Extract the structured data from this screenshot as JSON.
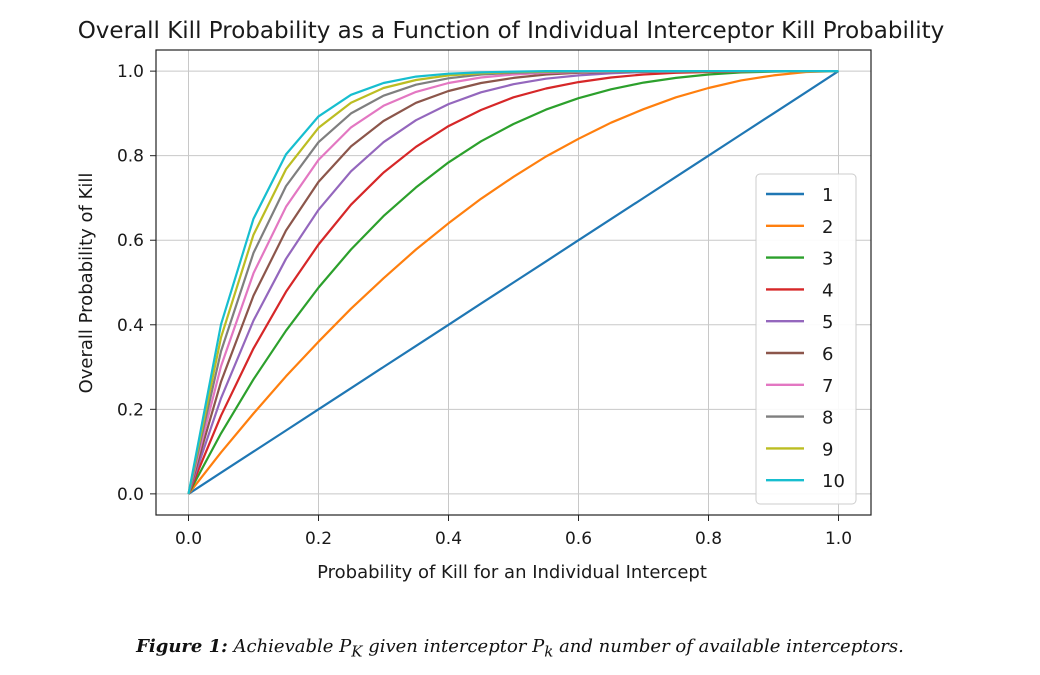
{
  "chart_data": {
    "type": "line",
    "title": "Overall Kill Probability as a Function of Individual Interceptor Kill Probability",
    "xlabel": "Probability of Kill for an Individual Intercept",
    "ylabel": "Overall Probability of Kill",
    "xlim": [
      -0.05,
      1.05
    ],
    "ylim": [
      -0.05,
      1.05
    ],
    "xticks": [
      "0.0",
      "0.2",
      "0.4",
      "0.6",
      "0.8",
      "1.0"
    ],
    "yticks": [
      "0.0",
      "0.2",
      "0.4",
      "0.6",
      "0.8",
      "1.0"
    ],
    "grid": true,
    "legend_position": "center-right",
    "x": [
      0.0,
      0.05,
      0.1,
      0.15,
      0.2,
      0.25,
      0.3,
      0.35,
      0.4,
      0.45,
      0.5,
      0.55,
      0.6,
      0.65,
      0.7,
      0.75,
      0.8,
      0.85,
      0.9,
      0.95,
      1.0
    ],
    "series": [
      {
        "name": "1",
        "color": "#1f77b4",
        "values": [
          0.0,
          0.05,
          0.1,
          0.15,
          0.2,
          0.25,
          0.3,
          0.35,
          0.4,
          0.45,
          0.5,
          0.55,
          0.6,
          0.65,
          0.7,
          0.75,
          0.8,
          0.85,
          0.9,
          0.95,
          1.0
        ]
      },
      {
        "name": "2",
        "color": "#ff7f0e",
        "values": [
          0.0,
          0.098,
          0.19,
          0.278,
          0.36,
          0.438,
          0.51,
          0.578,
          0.64,
          0.698,
          0.75,
          0.798,
          0.84,
          0.878,
          0.91,
          0.938,
          0.96,
          0.978,
          0.99,
          0.998,
          1.0
        ]
      },
      {
        "name": "3",
        "color": "#2ca02c",
        "values": [
          0.0,
          0.143,
          0.271,
          0.386,
          0.488,
          0.578,
          0.657,
          0.725,
          0.784,
          0.834,
          0.875,
          0.909,
          0.936,
          0.957,
          0.973,
          0.984,
          0.992,
          0.997,
          0.999,
          1.0,
          1.0
        ]
      },
      {
        "name": "4",
        "color": "#d62728",
        "values": [
          0.0,
          0.185,
          0.344,
          0.478,
          0.59,
          0.684,
          0.76,
          0.821,
          0.87,
          0.908,
          0.938,
          0.959,
          0.974,
          0.985,
          0.992,
          0.996,
          0.998,
          0.999,
          1.0,
          1.0,
          1.0
        ]
      },
      {
        "name": "5",
        "color": "#9467bd",
        "values": [
          0.0,
          0.226,
          0.41,
          0.556,
          0.672,
          0.763,
          0.832,
          0.884,
          0.922,
          0.95,
          0.969,
          0.982,
          0.99,
          0.995,
          0.998,
          0.999,
          1.0,
          1.0,
          1.0,
          1.0,
          1.0
        ]
      },
      {
        "name": "6",
        "color": "#8c564b",
        "values": [
          0.0,
          0.265,
          0.469,
          0.623,
          0.738,
          0.822,
          0.882,
          0.925,
          0.953,
          0.972,
          0.984,
          0.992,
          0.996,
          0.998,
          0.999,
          1.0,
          1.0,
          1.0,
          1.0,
          1.0,
          1.0
        ]
      },
      {
        "name": "7",
        "color": "#e377c2",
        "values": [
          0.0,
          0.302,
          0.522,
          0.679,
          0.79,
          0.867,
          0.918,
          0.951,
          0.972,
          0.985,
          0.992,
          0.996,
          0.998,
          0.999,
          1.0,
          1.0,
          1.0,
          1.0,
          1.0,
          1.0,
          1.0
        ]
      },
      {
        "name": "8",
        "color": "#7f7f7f",
        "values": [
          0.0,
          0.337,
          0.57,
          0.728,
          0.832,
          0.9,
          0.942,
          0.968,
          0.983,
          0.992,
          0.996,
          0.998,
          0.999,
          1.0,
          1.0,
          1.0,
          1.0,
          1.0,
          1.0,
          1.0,
          1.0
        ]
      },
      {
        "name": "9",
        "color": "#bcbd22",
        "values": [
          0.0,
          0.37,
          0.613,
          0.768,
          0.866,
          0.925,
          0.96,
          0.979,
          0.99,
          0.995,
          0.998,
          0.999,
          1.0,
          1.0,
          1.0,
          1.0,
          1.0,
          1.0,
          1.0,
          1.0,
          1.0
        ]
      },
      {
        "name": "10",
        "color": "#17becf",
        "values": [
          0.0,
          0.401,
          0.651,
          0.803,
          0.893,
          0.944,
          0.972,
          0.987,
          0.994,
          0.997,
          0.999,
          1.0,
          1.0,
          1.0,
          1.0,
          1.0,
          1.0,
          1.0,
          1.0,
          1.0,
          1.0
        ]
      }
    ]
  },
  "caption": {
    "label": "Figure 1:",
    "text_before": " Achievable ",
    "sym_PK": "P",
    "sub_K": "K",
    "text_mid": " given interceptor ",
    "sym_Pk": "P",
    "sub_k": "k",
    "text_after": " and number of available interceptors."
  }
}
